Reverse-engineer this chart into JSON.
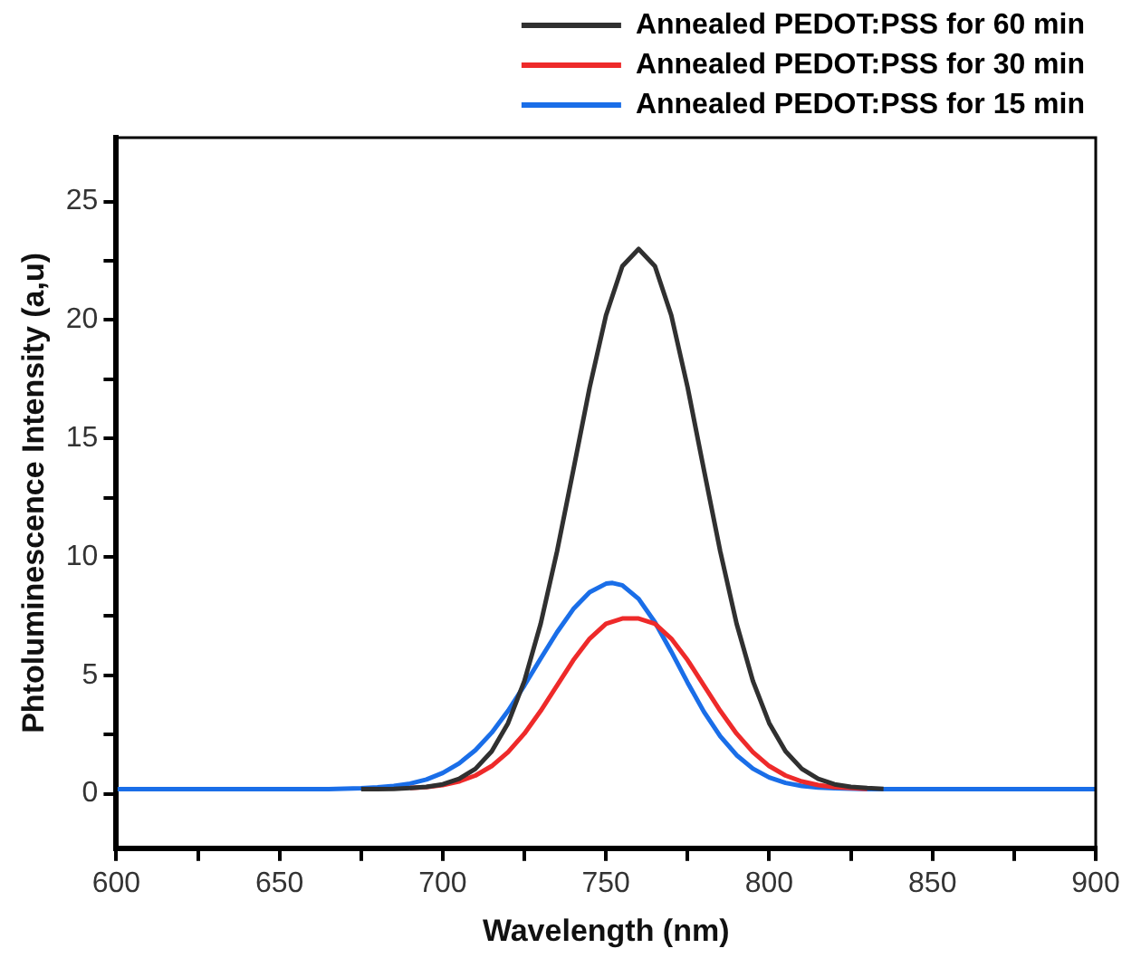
{
  "chart_data": {
    "type": "line",
    "xlabel": "Wavelength (nm)",
    "ylabel": "Phtoluminescence Intensity (a,u)",
    "xlim": [
      600,
      900
    ],
    "xticks": [
      600,
      {
        "value": 625,
        "label": null
      },
      650,
      {
        "value": 675,
        "label": null
      },
      700,
      {
        "value": 725,
        "label": null
      },
      750,
      {
        "value": 775,
        "label": null
      },
      800,
      {
        "value": 825,
        "label": null
      },
      850,
      {
        "value": 875,
        "label": null
      },
      900
    ],
    "ylim": [
      -2.3,
      27.7
    ],
    "yticks": [
      0,
      {
        "value": 2.5,
        "label": null
      },
      5,
      {
        "value": 7.5,
        "label": null
      },
      10,
      {
        "value": 12.5,
        "label": null
      },
      15,
      {
        "value": 17.5,
        "label": null
      },
      20,
      {
        "value": 22.5,
        "label": null
      },
      25
    ],
    "grid": false,
    "legend": "top right",
    "marker": "none",
    "line_style": "solid",
    "series": [
      {
        "name": "Annealed PEDOT:PSS for 60 min",
        "color": "#303030",
        "x": [
          675,
          680,
          685,
          690,
          695,
          700,
          705,
          710,
          715,
          720,
          725,
          730,
          735,
          740,
          745,
          750,
          755,
          760,
          765,
          770,
          775,
          780,
          785,
          790,
          795,
          800,
          805,
          810,
          815,
          820,
          825,
          830,
          835
        ],
        "values": [
          0.2,
          0.2,
          0.21,
          0.24,
          0.29,
          0.4,
          0.63,
          1.05,
          1.79,
          2.98,
          4.76,
          7.18,
          10.23,
          13.67,
          17.16,
          20.2,
          22.27,
          23,
          22.27,
          20.2,
          17.16,
          13.67,
          10.23,
          7.18,
          4.76,
          2.98,
          1.79,
          1.05,
          0.63,
          0.4,
          0.29,
          0.24,
          0.21
        ]
      },
      {
        "name": "Annealed PEDOT:PSS for 30 min",
        "color": "#ee2a2a",
        "x": [
          690,
          695,
          700,
          705,
          710,
          715,
          720,
          725,
          730,
          735,
          740,
          745,
          750,
          755,
          760,
          765,
          770,
          775,
          780,
          785,
          790,
          795,
          800,
          805,
          810,
          815,
          820,
          825,
          830
        ],
        "values": [
          0.24,
          0.28,
          0.37,
          0.52,
          0.77,
          1.17,
          1.76,
          2.54,
          3.5,
          4.57,
          5.64,
          6.55,
          7.18,
          7.4,
          7.4,
          7.18,
          6.55,
          5.64,
          4.57,
          3.5,
          2.54,
          1.76,
          1.17,
          0.77,
          0.52,
          0.37,
          0.28,
          0.24,
          0.21
        ]
      },
      {
        "name": "Annealed PEDOT:PSS for 15 min",
        "color": "#1a6ee8",
        "x": [
          600,
          665,
          675,
          680,
          685,
          690,
          695,
          700,
          705,
          710,
          715,
          720,
          725,
          730,
          735,
          740,
          745,
          750,
          752,
          755,
          760,
          765,
          770,
          775,
          780,
          785,
          790,
          795,
          800,
          805,
          810,
          815,
          820,
          830,
          900
        ],
        "values": [
          0.2,
          0.2,
          0.23,
          0.27,
          0.33,
          0.43,
          0.6,
          0.88,
          1.28,
          1.84,
          2.58,
          3.5,
          4.57,
          5.71,
          6.82,
          7.8,
          8.51,
          8.87,
          8.9,
          8.8,
          8.23,
          7.24,
          6.0,
          4.69,
          3.46,
          2.43,
          1.63,
          1.06,
          0.69,
          0.46,
          0.33,
          0.26,
          0.23,
          0.2,
          0.2
        ]
      }
    ]
  }
}
